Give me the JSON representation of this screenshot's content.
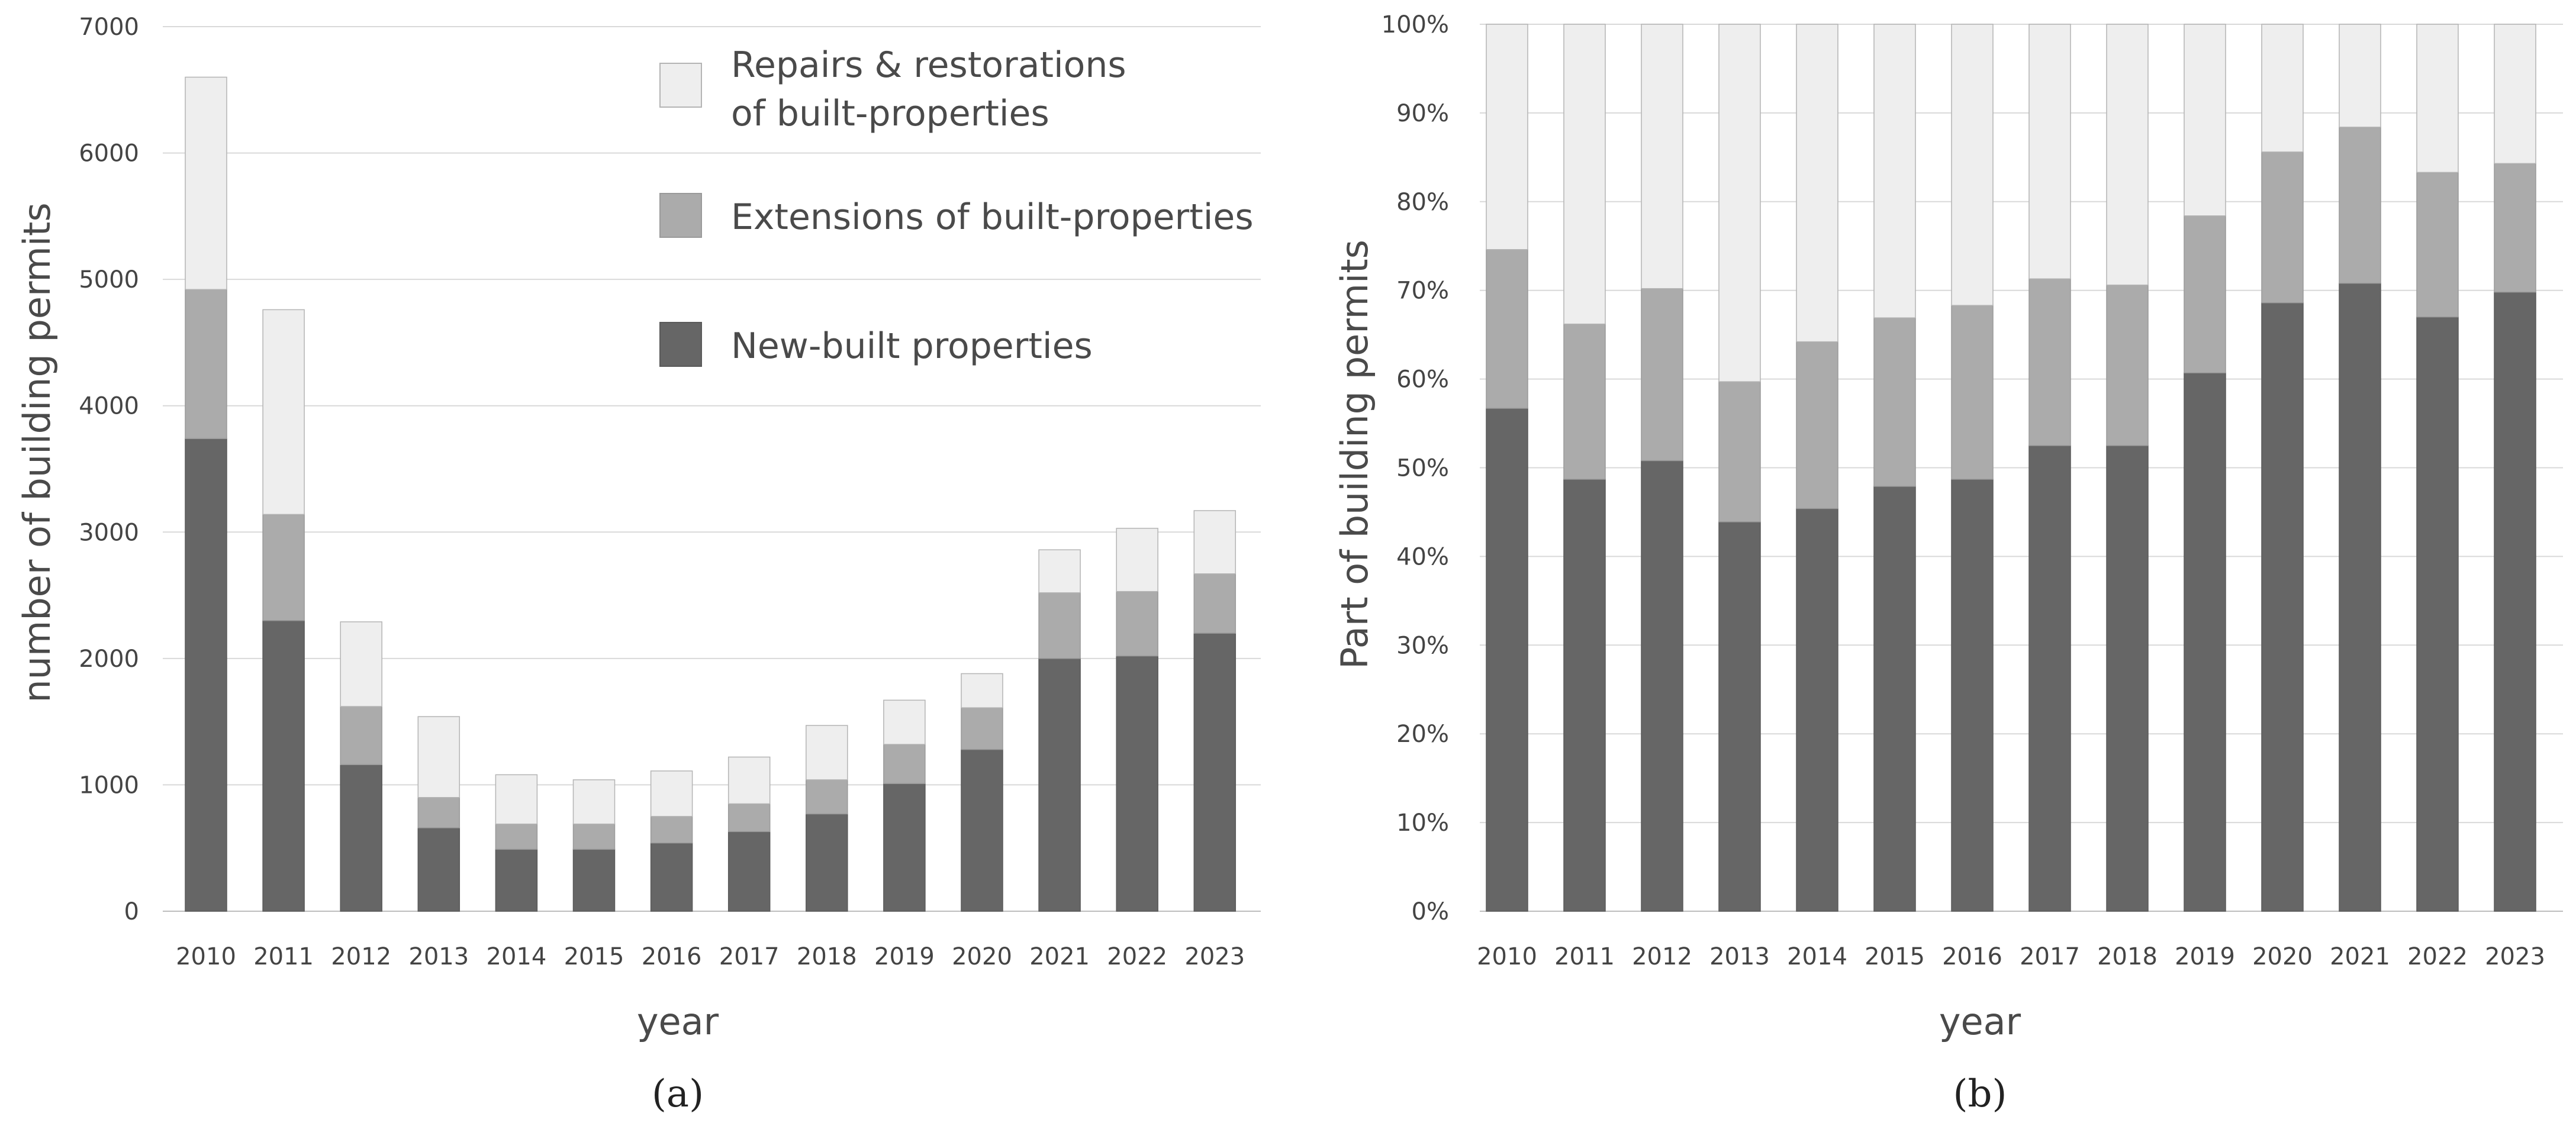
{
  "chart_data": [
    {
      "panel": "(a)",
      "type": "bar",
      "stacked": true,
      "categories": [
        "2010",
        "2011",
        "2012",
        "2013",
        "2014",
        "2015",
        "2016",
        "2017",
        "2018",
        "2019",
        "2020",
        "2021",
        "2022",
        "2023"
      ],
      "series": [
        {
          "name": "New-built properties",
          "color": "#666666",
          "values": [
            3740,
            2300,
            1160,
            660,
            490,
            490,
            540,
            630,
            770,
            1010,
            1280,
            2000,
            2020,
            2200
          ]
        },
        {
          "name": "Extensions of built-properties",
          "color": "#ababab",
          "values": [
            1180,
            840,
            460,
            240,
            200,
            200,
            210,
            220,
            270,
            310,
            330,
            520,
            510,
            470
          ]
        },
        {
          "name": "Repairs & restorations of built-properties",
          "color": "#eeeeee",
          "values": [
            1680,
            1620,
            670,
            640,
            390,
            350,
            360,
            370,
            430,
            350,
            270,
            340,
            500,
            500
          ]
        }
      ],
      "legend_labels": [
        "Repairs & restorations",
        "of built-properties",
        "Extensions of built-properties",
        "New-built properties"
      ],
      "title": "",
      "xlabel": "year",
      "ylabel": "number of building permits",
      "ylim": [
        0,
        7000
      ],
      "yticks": [
        0,
        1000,
        2000,
        3000,
        4000,
        5000,
        6000,
        7000
      ],
      "ytick_labels": [
        "0",
        "1000",
        "2000",
        "3000",
        "4000",
        "5000",
        "6000",
        "7000"
      ],
      "grid": true,
      "legend_position": "top-right"
    },
    {
      "panel": "(b)",
      "type": "bar",
      "stacked": true,
      "percent": true,
      "categories": [
        "2010",
        "2011",
        "2012",
        "2013",
        "2014",
        "2015",
        "2016",
        "2017",
        "2018",
        "2019",
        "2020",
        "2021",
        "2022",
        "2023"
      ],
      "series": [
        {
          "name": "New-built properties",
          "color": "#666666",
          "values": [
            56.7,
            48.7,
            50.8,
            43.9,
            45.4,
            47.9,
            48.7,
            52.5,
            52.5,
            60.7,
            68.6,
            70.8,
            67.0,
            69.8
          ]
        },
        {
          "name": "Extensions of built-properties",
          "color": "#ababab",
          "values": [
            17.9,
            17.5,
            19.4,
            15.8,
            18.8,
            19.0,
            19.6,
            18.8,
            18.1,
            17.7,
            17.0,
            17.6,
            16.3,
            14.5
          ]
        },
        {
          "name": "Repairs & restorations of built-properties",
          "color": "#eeeeee",
          "values": [
            25.4,
            33.8,
            29.8,
            40.3,
            35.8,
            33.1,
            31.7,
            28.7,
            29.4,
            21.6,
            14.4,
            11.6,
            16.7,
            15.7
          ]
        }
      ],
      "title": "",
      "xlabel": "year",
      "ylabel": "Part of building permits",
      "ylim": [
        0,
        100
      ],
      "yticks": [
        0,
        10,
        20,
        30,
        40,
        50,
        60,
        70,
        80,
        90,
        100
      ],
      "ytick_labels": [
        "0%",
        "10%",
        "20%",
        "30%",
        "40%",
        "50%",
        "60%",
        "70%",
        "80%",
        "90%",
        "100%"
      ],
      "grid": true
    }
  ]
}
